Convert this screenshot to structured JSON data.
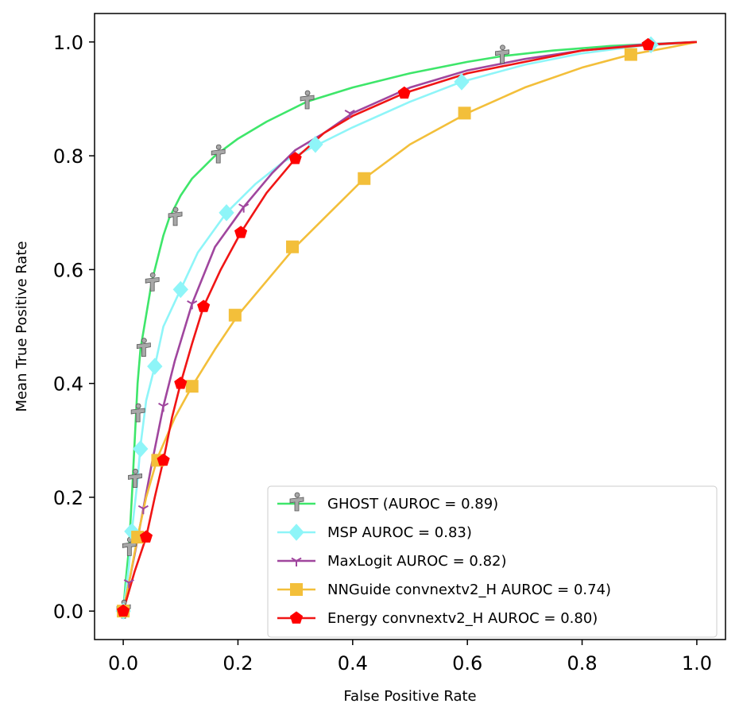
{
  "chart_data": {
    "type": "line",
    "title": "",
    "xlabel": "False Positive Rate",
    "ylabel": "Mean True Positive Rate",
    "xlim": [
      -0.05,
      1.05
    ],
    "ylim": [
      -0.05,
      1.05
    ],
    "x_ticks": [
      "0.0",
      "0.2",
      "0.4",
      "0.6",
      "0.8",
      "1.0"
    ],
    "y_ticks": [
      "0.0",
      "0.2",
      "0.4",
      "0.6",
      "0.8",
      "1.0"
    ],
    "grid": false,
    "legend_position": "lower-right",
    "series": [
      {
        "name": "GHOST (AUROC = 0.89)",
        "color": "#3ee66a",
        "marker": "figure",
        "marker_color": "#a8a8a8",
        "curve": [
          [
            0.0,
            0.0
          ],
          [
            0.005,
            0.06
          ],
          [
            0.01,
            0.11
          ],
          [
            0.015,
            0.2
          ],
          [
            0.02,
            0.3
          ],
          [
            0.025,
            0.4
          ],
          [
            0.03,
            0.46
          ],
          [
            0.04,
            0.52
          ],
          [
            0.05,
            0.58
          ],
          [
            0.06,
            0.62
          ],
          [
            0.07,
            0.66
          ],
          [
            0.08,
            0.69
          ],
          [
            0.1,
            0.73
          ],
          [
            0.12,
            0.76
          ],
          [
            0.16,
            0.8
          ],
          [
            0.2,
            0.83
          ],
          [
            0.25,
            0.86
          ],
          [
            0.32,
            0.895
          ],
          [
            0.4,
            0.92
          ],
          [
            0.5,
            0.945
          ],
          [
            0.6,
            0.965
          ],
          [
            0.66,
            0.975
          ],
          [
            0.75,
            0.985
          ],
          [
            0.85,
            0.993
          ],
          [
            1.0,
            1.0
          ]
        ],
        "markers": [
          [
            0.0,
            0.0
          ],
          [
            0.01,
            0.11
          ],
          [
            0.02,
            0.23
          ],
          [
            0.025,
            0.345
          ],
          [
            0.035,
            0.46
          ],
          [
            0.05,
            0.575
          ],
          [
            0.09,
            0.69
          ],
          [
            0.165,
            0.8
          ],
          [
            0.32,
            0.895
          ],
          [
            0.66,
            0.975
          ]
        ]
      },
      {
        "name": "MSP  AUROC = 0.83)",
        "color": "#8ef5f8",
        "marker": "diamond",
        "marker_color": "#8ef5f8",
        "curve": [
          [
            0.0,
            0.0
          ],
          [
            0.01,
            0.08
          ],
          [
            0.015,
            0.14
          ],
          [
            0.025,
            0.23
          ],
          [
            0.03,
            0.29
          ],
          [
            0.04,
            0.37
          ],
          [
            0.055,
            0.43
          ],
          [
            0.07,
            0.5
          ],
          [
            0.1,
            0.565
          ],
          [
            0.13,
            0.63
          ],
          [
            0.18,
            0.7
          ],
          [
            0.23,
            0.75
          ],
          [
            0.28,
            0.79
          ],
          [
            0.34,
            0.82
          ],
          [
            0.4,
            0.85
          ],
          [
            0.5,
            0.895
          ],
          [
            0.59,
            0.93
          ],
          [
            0.7,
            0.96
          ],
          [
            0.8,
            0.98
          ],
          [
            0.9,
            0.993
          ],
          [
            1.0,
            1.0
          ]
        ],
        "markers": [
          [
            0.0,
            0.0
          ],
          [
            0.015,
            0.14
          ],
          [
            0.03,
            0.285
          ],
          [
            0.055,
            0.43
          ],
          [
            0.1,
            0.565
          ],
          [
            0.18,
            0.7
          ],
          [
            0.335,
            0.82
          ],
          [
            0.59,
            0.93
          ],
          [
            0.92,
            0.995
          ]
        ]
      },
      {
        "name": "MaxLogit  AUROC = 0.82)",
        "color": "#a0469e",
        "marker": "tri",
        "marker_color": "#a0469e",
        "curve": [
          [
            0.0,
            0.0
          ],
          [
            0.01,
            0.05
          ],
          [
            0.02,
            0.1
          ],
          [
            0.035,
            0.18
          ],
          [
            0.05,
            0.26
          ],
          [
            0.07,
            0.36
          ],
          [
            0.09,
            0.44
          ],
          [
            0.12,
            0.54
          ],
          [
            0.16,
            0.64
          ],
          [
            0.21,
            0.71
          ],
          [
            0.26,
            0.77
          ],
          [
            0.3,
            0.81
          ],
          [
            0.35,
            0.84
          ],
          [
            0.4,
            0.875
          ],
          [
            0.5,
            0.92
          ],
          [
            0.6,
            0.95
          ],
          [
            0.7,
            0.97
          ],
          [
            0.8,
            0.985
          ],
          [
            0.9,
            0.995
          ],
          [
            1.0,
            1.0
          ]
        ],
        "markers": [
          [
            0.01,
            0.05
          ],
          [
            0.035,
            0.18
          ],
          [
            0.07,
            0.36
          ],
          [
            0.12,
            0.54
          ],
          [
            0.21,
            0.71
          ],
          [
            0.395,
            0.875
          ]
        ]
      },
      {
        "name": "NNGuide convnextv2_H  AUROC = 0.74)",
        "color": "#f3bf3a",
        "marker": "square",
        "marker_color": "#f3bf3a",
        "curve": [
          [
            0.0,
            0.0
          ],
          [
            0.01,
            0.05
          ],
          [
            0.025,
            0.13
          ],
          [
            0.04,
            0.2
          ],
          [
            0.06,
            0.27
          ],
          [
            0.09,
            0.34
          ],
          [
            0.12,
            0.395
          ],
          [
            0.16,
            0.46
          ],
          [
            0.2,
            0.52
          ],
          [
            0.25,
            0.58
          ],
          [
            0.3,
            0.64
          ],
          [
            0.36,
            0.7
          ],
          [
            0.42,
            0.76
          ],
          [
            0.5,
            0.82
          ],
          [
            0.6,
            0.875
          ],
          [
            0.7,
            0.92
          ],
          [
            0.8,
            0.955
          ],
          [
            0.885,
            0.978
          ],
          [
            0.95,
            0.99
          ],
          [
            1.0,
            1.0
          ]
        ],
        "markers": [
          [
            0.0,
            0.0
          ],
          [
            0.025,
            0.13
          ],
          [
            0.06,
            0.265
          ],
          [
            0.12,
            0.395
          ],
          [
            0.195,
            0.52
          ],
          [
            0.295,
            0.64
          ],
          [
            0.42,
            0.76
          ],
          [
            0.595,
            0.875
          ],
          [
            0.885,
            0.978
          ]
        ]
      },
      {
        "name": "Energy convnextv2_H  AUROC = 0.80)",
        "color": "#f01515",
        "marker": "pentagon",
        "marker_color": "#ff0000",
        "curve": [
          [
            0.0,
            0.0
          ],
          [
            0.02,
            0.07
          ],
          [
            0.04,
            0.13
          ],
          [
            0.055,
            0.2
          ],
          [
            0.07,
            0.265
          ],
          [
            0.085,
            0.34
          ],
          [
            0.1,
            0.4
          ],
          [
            0.12,
            0.47
          ],
          [
            0.14,
            0.535
          ],
          [
            0.17,
            0.6
          ],
          [
            0.205,
            0.665
          ],
          [
            0.25,
            0.735
          ],
          [
            0.3,
            0.795
          ],
          [
            0.35,
            0.84
          ],
          [
            0.4,
            0.87
          ],
          [
            0.49,
            0.91
          ],
          [
            0.6,
            0.945
          ],
          [
            0.7,
            0.965
          ],
          [
            0.8,
            0.985
          ],
          [
            0.915,
            0.995
          ],
          [
            1.0,
            1.0
          ]
        ],
        "markers": [
          [
            0.0,
            0.0
          ],
          [
            0.04,
            0.13
          ],
          [
            0.07,
            0.265
          ],
          [
            0.1,
            0.4
          ],
          [
            0.14,
            0.535
          ],
          [
            0.205,
            0.665
          ],
          [
            0.3,
            0.795
          ],
          [
            0.49,
            0.91
          ],
          [
            0.915,
            0.995
          ]
        ]
      }
    ]
  }
}
